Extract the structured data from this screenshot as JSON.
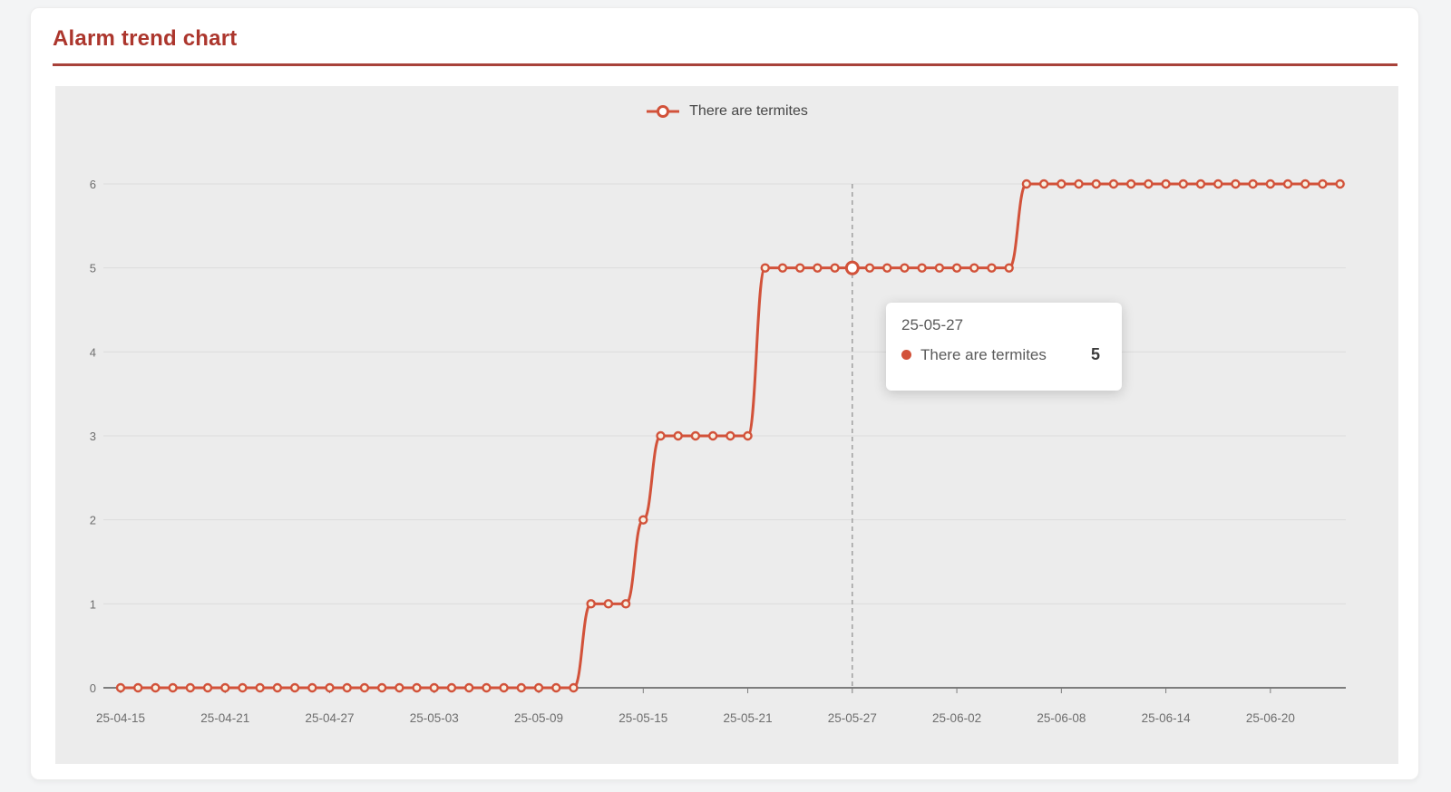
{
  "header": {
    "title": "Alarm trend chart"
  },
  "legend": {
    "label": "There are termites"
  },
  "tooltip": {
    "date": "25-05-27",
    "series": "There are termites",
    "value": "5"
  },
  "chart_data": {
    "type": "line",
    "title": "Alarm trend chart",
    "smooth": true,
    "grid": "horizontal",
    "legend_position": "top-center",
    "ylim": [
      0,
      6
    ],
    "yticks": [
      0,
      1,
      2,
      3,
      4,
      5,
      6
    ],
    "x": [
      "25-04-15",
      "25-04-16",
      "25-04-17",
      "25-04-18",
      "25-04-19",
      "25-04-20",
      "25-04-21",
      "25-04-22",
      "25-04-23",
      "25-04-24",
      "25-04-25",
      "25-04-26",
      "25-04-27",
      "25-04-28",
      "25-04-29",
      "25-04-30",
      "25-05-01",
      "25-05-02",
      "25-05-03",
      "25-05-04",
      "25-05-05",
      "25-05-06",
      "25-05-07",
      "25-05-08",
      "25-05-09",
      "25-05-10",
      "25-05-11",
      "25-05-12",
      "25-05-13",
      "25-05-14",
      "25-05-15",
      "25-05-16",
      "25-05-17",
      "25-05-18",
      "25-05-19",
      "25-05-20",
      "25-05-21",
      "25-05-22",
      "25-05-23",
      "25-05-24",
      "25-05-25",
      "25-05-26",
      "25-05-27",
      "25-05-28",
      "25-05-29",
      "25-05-30",
      "25-05-31",
      "25-06-01",
      "25-06-02",
      "25-06-03",
      "25-06-04",
      "25-06-05",
      "25-06-06",
      "25-06-07",
      "25-06-08",
      "25-06-09",
      "25-06-10",
      "25-06-11",
      "25-06-12",
      "25-06-13",
      "25-06-14",
      "25-06-15",
      "25-06-16",
      "25-06-17",
      "25-06-18",
      "25-06-19",
      "25-06-20",
      "25-06-21",
      "25-06-22",
      "25-06-23",
      "25-06-24"
    ],
    "xtick_labels": [
      "25-04-15",
      "25-04-21",
      "25-04-27",
      "25-05-03",
      "25-05-09",
      "25-05-15",
      "25-05-21",
      "25-05-27",
      "25-06-02",
      "25-06-08",
      "25-06-14",
      "25-06-20"
    ],
    "series": [
      {
        "name": "There are termites",
        "values": [
          0,
          0,
          0,
          0,
          0,
          0,
          0,
          0,
          0,
          0,
          0,
          0,
          0,
          0,
          0,
          0,
          0,
          0,
          0,
          0,
          0,
          0,
          0,
          0,
          0,
          0,
          0,
          1,
          1,
          1,
          2,
          3,
          3,
          3,
          3,
          3,
          3,
          5,
          5,
          5,
          5,
          5,
          5,
          5,
          5,
          5,
          5,
          5,
          5,
          5,
          5,
          5,
          6,
          6,
          6,
          6,
          6,
          6,
          6,
          6,
          6,
          6,
          6,
          6,
          6,
          6,
          6,
          6,
          6,
          6,
          6
        ]
      }
    ],
    "highlight": {
      "date": "25-05-27",
      "value": 5
    },
    "colors": {
      "line": "#d2523a",
      "marker_fill": "#f7f0e2",
      "highlight_fill": "#ffffff",
      "title_red": "#ac362d",
      "rule_red": "#a8423a",
      "panel_bg": "#ececec",
      "grid_line": "#dcdcdc",
      "axis_line": "#7d7d7d",
      "tick_text": "#6e6e6e",
      "dashed_guide": "#9b9b9b"
    }
  }
}
